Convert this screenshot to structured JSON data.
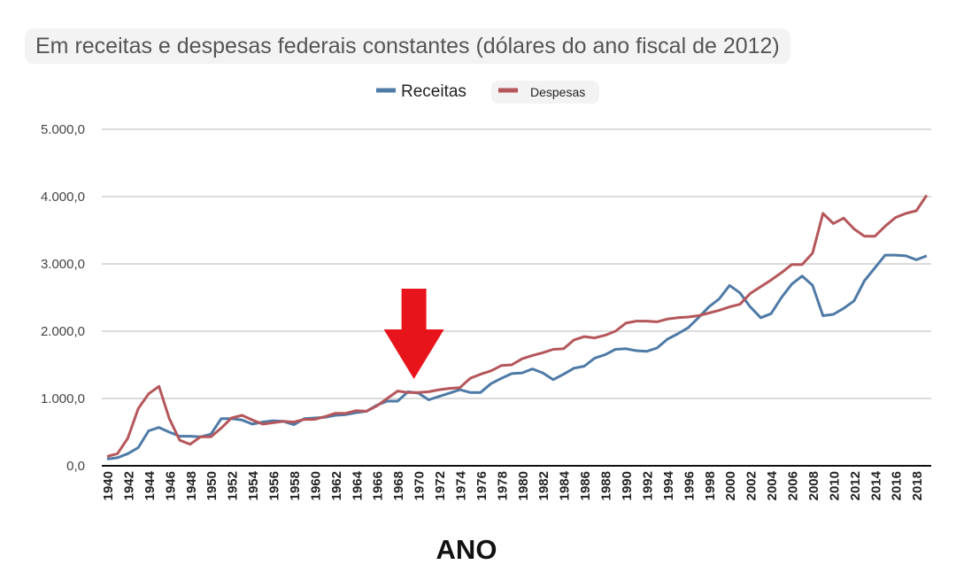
{
  "chart_data": {
    "type": "line",
    "title": "Em receitas e despesas federais constantes (dólares do ano fiscal de 2012)",
    "xlabel": "ANO",
    "ylabel": "",
    "ylim": [
      0,
      5000
    ],
    "yticks": [
      "0,0",
      "1.000,0",
      "2.000,0",
      "3.000,0",
      "4.000,0",
      "5.000,0"
    ],
    "grid": true,
    "legend_position": "top",
    "x": [
      1940,
      1941,
      1942,
      1943,
      1944,
      1945,
      1946,
      1947,
      1948,
      1949,
      1950,
      1951,
      1952,
      1953,
      1954,
      1955,
      1956,
      1957,
      1958,
      1959,
      1960,
      1961,
      1962,
      1963,
      1964,
      1965,
      1966,
      1967,
      1968,
      1969,
      1970,
      1971,
      1972,
      1973,
      1974,
      1975,
      1976,
      1977,
      1978,
      1979,
      1980,
      1981,
      1982,
      1983,
      1984,
      1985,
      1986,
      1987,
      1988,
      1989,
      1990,
      1991,
      1992,
      1993,
      1994,
      1995,
      1996,
      1997,
      1998,
      1999,
      2000,
      2001,
      2002,
      2003,
      2004,
      2005,
      2006,
      2007,
      2008,
      2009,
      2010,
      2011,
      2012,
      2013,
      2014,
      2015,
      2016,
      2017,
      2018,
      2019
    ],
    "series": [
      {
        "name": "Receitas",
        "color": "#4e7aa6",
        "values": [
          100,
          120,
          180,
          270,
          520,
          570,
          500,
          440,
          440,
          430,
          470,
          700,
          700,
          680,
          620,
          650,
          670,
          660,
          610,
          700,
          710,
          720,
          750,
          760,
          790,
          810,
          900,
          960,
          960,
          1100,
          1080,
          980,
          1030,
          1080,
          1130,
          1090,
          1090,
          1220,
          1300,
          1370,
          1380,
          1440,
          1380,
          1280,
          1360,
          1450,
          1480,
          1600,
          1650,
          1730,
          1740,
          1710,
          1700,
          1750,
          1880,
          1960,
          2050,
          2200,
          2360,
          2480,
          2680,
          2570,
          2360,
          2200,
          2260,
          2500,
          2700,
          2820,
          2680,
          2230,
          2250,
          2340,
          2450,
          2750,
          2940,
          3130,
          3130,
          3120,
          3060,
          3120
        ]
      },
      {
        "name": "Despesas",
        "color": "#b5565a",
        "values": [
          140,
          180,
          410,
          850,
          1070,
          1180,
          700,
          380,
          320,
          430,
          430,
          560,
          710,
          750,
          680,
          620,
          640,
          660,
          650,
          690,
          690,
          730,
          780,
          780,
          820,
          810,
          890,
          1000,
          1110,
          1090,
          1090,
          1100,
          1130,
          1150,
          1160,
          1300,
          1360,
          1410,
          1490,
          1500,
          1590,
          1640,
          1680,
          1730,
          1740,
          1870,
          1920,
          1900,
          1940,
          2000,
          2120,
          2150,
          2150,
          2140,
          2180,
          2200,
          2210,
          2230,
          2270,
          2310,
          2360,
          2400,
          2560,
          2660,
          2760,
          2870,
          2990,
          2990,
          3160,
          3750,
          3600,
          3680,
          3520,
          3410,
          3410,
          3560,
          3690,
          3750,
          3790,
          4020
        ]
      }
    ],
    "annotations": [
      {
        "type": "arrow",
        "x": 1970,
        "color": "#e8141c"
      }
    ]
  }
}
